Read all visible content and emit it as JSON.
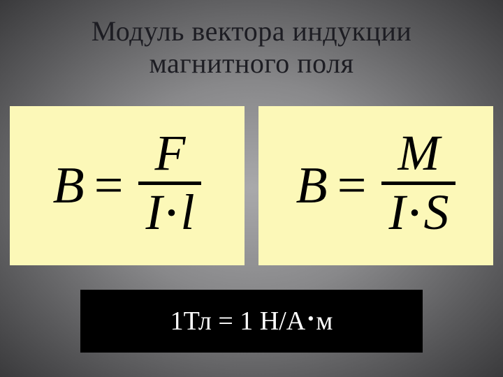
{
  "title_line1": "Модуль вектора индукции",
  "title_line2": "магнитного поля",
  "formula1": {
    "lhs": "B",
    "numerator": "F",
    "denom_left": "I",
    "denom_right": "l",
    "box_bg": "#fcf8b8"
  },
  "formula2": {
    "lhs": "B",
    "numerator": "M",
    "denom_left": "I",
    "denom_right": "S",
    "box_bg": "#fcf8b8"
  },
  "unit": {
    "left": "1Тл = 1 Н/А",
    "right": "м",
    "box_bg": "#000000",
    "text_color": "#ffffff"
  },
  "background_gradient": {
    "center": "#a9a9ab",
    "edge": "#3a3a3c"
  }
}
